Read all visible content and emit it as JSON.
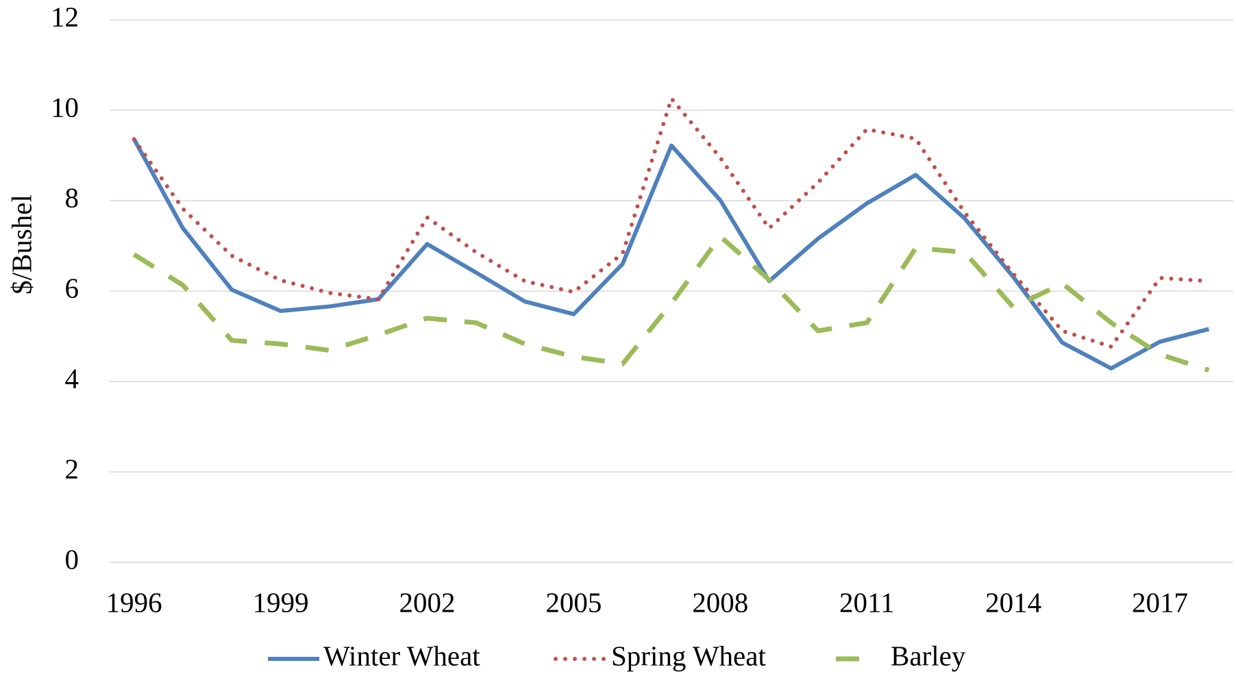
{
  "chart_data": {
    "type": "line",
    "y_label": "$/Bushel",
    "x": [
      1996,
      1997,
      1998,
      1999,
      2000,
      2001,
      2002,
      2003,
      2004,
      2005,
      2006,
      2007,
      2008,
      2009,
      2010,
      2011,
      2012,
      2013,
      2014,
      2015,
      2016,
      2017,
      2018
    ],
    "xlim": [
      1995.5,
      2018.5
    ],
    "xticks": [
      1996,
      1999,
      2002,
      2005,
      2008,
      2011,
      2014,
      2017
    ],
    "ylim": [
      0,
      12
    ],
    "yticks": [
      0,
      2,
      4,
      6,
      8,
      10,
      12
    ],
    "grid": true,
    "legend": "bottom",
    "series": [
      {
        "name": "Winter Wheat",
        "color": "#4f81bd",
        "style": "solid",
        "values": [
          9.36,
          7.39,
          6.03,
          5.56,
          5.66,
          5.82,
          7.04,
          6.41,
          5.77,
          5.49,
          6.6,
          9.22,
          8.01,
          6.22,
          7.16,
          7.94,
          8.57,
          7.61,
          6.31,
          4.86,
          4.29,
          4.88,
          5.16
        ]
      },
      {
        "name": "Spring Wheat",
        "color": "#c0504d",
        "style": "dotted",
        "values": [
          9.36,
          7.82,
          6.78,
          6.24,
          5.96,
          5.82,
          7.63,
          6.86,
          6.22,
          5.98,
          6.83,
          10.26,
          8.95,
          7.39,
          8.4,
          9.58,
          9.37,
          7.74,
          6.38,
          5.12,
          4.77,
          6.29,
          6.22
        ]
      },
      {
        "name": "Barley",
        "color": "#9bbb59",
        "style": "dashed",
        "values": [
          6.81,
          6.13,
          4.91,
          4.83,
          4.69,
          5.03,
          5.4,
          5.3,
          4.83,
          4.55,
          4.39,
          5.73,
          7.21,
          6.25,
          5.12,
          5.3,
          6.95,
          6.86,
          5.64,
          6.17,
          5.3,
          4.6,
          4.25
        ]
      }
    ]
  }
}
